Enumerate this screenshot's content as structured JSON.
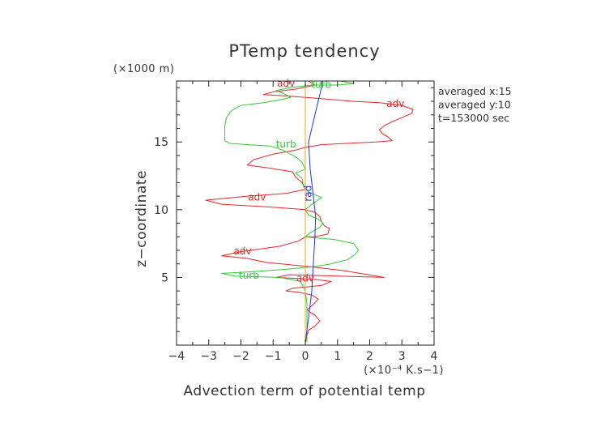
{
  "chart_data": {
    "type": "line",
    "title": "PTemp tendency",
    "xlabel": "Advection term of potential temp",
    "ylabel": "z−coordinate",
    "x_unit": "(×10⁻⁴ K.s−1)",
    "y_unit": "(×1000 m)",
    "xlim": [
      -4,
      4
    ],
    "ylim": [
      0,
      19.5
    ],
    "x_ticks": [
      -4,
      -3,
      -2,
      -1,
      0,
      1,
      2,
      3,
      4
    ],
    "x_tick_labels": [
      "−4",
      "−3",
      "−2",
      "−1",
      "0",
      "1",
      "2",
      "3",
      "4"
    ],
    "y_ticks": [
      5,
      10,
      15
    ],
    "y_tick_labels": [
      "5",
      "10",
      "15"
    ],
    "info_lines": [
      "averaged  x:15",
      "averaged  y:10",
      "t=153000 sec"
    ],
    "series": [
      {
        "name": "adv",
        "color": "#e8262a",
        "points": [
          [
            0.0,
            0.2
          ],
          [
            0.05,
            0.7
          ],
          [
            0.1,
            1.1
          ],
          [
            0.3,
            1.4
          ],
          [
            0.45,
            1.8
          ],
          [
            0.3,
            2.2
          ],
          [
            0.05,
            2.6
          ],
          [
            0.25,
            3.0
          ],
          [
            0.4,
            3.4
          ],
          [
            0.2,
            3.7
          ],
          [
            -0.2,
            3.9
          ],
          [
            -0.6,
            4.0
          ],
          [
            -0.4,
            4.2
          ],
          [
            0.5,
            4.4
          ],
          [
            0.8,
            4.7
          ],
          [
            0.3,
            4.85
          ],
          [
            -0.9,
            5.0
          ],
          [
            -0.5,
            5.2
          ],
          [
            2.45,
            5.0
          ],
          [
            1.2,
            5.5
          ],
          [
            0.1,
            5.8
          ],
          [
            -1.2,
            6.1
          ],
          [
            -1.8,
            6.4
          ],
          [
            -2.6,
            6.6
          ],
          [
            -2.0,
            6.9
          ],
          [
            -0.8,
            7.3
          ],
          [
            -0.2,
            7.7
          ],
          [
            0.0,
            8.0
          ],
          [
            0.3,
            8.0
          ],
          [
            0.7,
            8.2
          ],
          [
            0.75,
            8.6
          ],
          [
            0.6,
            8.8
          ],
          [
            0.5,
            9.1
          ],
          [
            0.45,
            9.5
          ],
          [
            0.3,
            9.8
          ],
          [
            0.0,
            10.0
          ],
          [
            -1.1,
            10.2
          ],
          [
            -2.6,
            10.4
          ],
          [
            -3.1,
            10.7
          ],
          [
            -1.8,
            11.0
          ],
          [
            -0.6,
            11.2
          ],
          [
            0.0,
            11.5
          ],
          [
            -0.1,
            12.0
          ],
          [
            -0.3,
            12.4
          ],
          [
            -0.4,
            12.8
          ],
          [
            -1.2,
            13.1
          ],
          [
            -1.8,
            13.3
          ],
          [
            -1.6,
            13.7
          ],
          [
            -1.0,
            14.1
          ],
          [
            -0.3,
            14.4
          ],
          [
            0.0,
            14.6
          ],
          [
            0.5,
            14.8
          ],
          [
            1.3,
            14.9
          ],
          [
            2.2,
            15.0
          ],
          [
            2.7,
            15.1
          ],
          [
            2.55,
            15.4
          ],
          [
            2.4,
            15.6
          ],
          [
            2.3,
            15.9
          ],
          [
            2.45,
            16.2
          ],
          [
            2.7,
            16.5
          ],
          [
            3.0,
            16.8
          ],
          [
            3.3,
            17.1
          ],
          [
            3.35,
            17.4
          ],
          [
            3.0,
            17.7
          ],
          [
            2.3,
            17.9
          ],
          [
            1.5,
            18.0
          ],
          [
            0.5,
            18.2
          ],
          [
            -0.6,
            18.4
          ],
          [
            -1.3,
            18.5
          ],
          [
            -1.0,
            18.7
          ],
          [
            -0.3,
            18.9
          ],
          [
            0.3,
            19.2
          ],
          [
            0.1,
            19.5
          ]
        ]
      },
      {
        "name": "turb",
        "color": "#2ecc2e",
        "points": [
          [
            0.05,
            0.2
          ],
          [
            0.05,
            1.0
          ],
          [
            0.05,
            2.0
          ],
          [
            0.05,
            3.0
          ],
          [
            0.0,
            4.0
          ],
          [
            -0.15,
            4.7
          ],
          [
            -0.8,
            5.0
          ],
          [
            -2.2,
            5.1
          ],
          [
            -2.6,
            5.3
          ],
          [
            -1.8,
            5.4
          ],
          [
            -0.6,
            5.6
          ],
          [
            0.3,
            5.8
          ],
          [
            0.8,
            6.0
          ],
          [
            1.3,
            6.3
          ],
          [
            1.55,
            6.7
          ],
          [
            1.65,
            7.0
          ],
          [
            1.5,
            7.5
          ],
          [
            0.9,
            7.8
          ],
          [
            0.4,
            7.9
          ],
          [
            0.0,
            8.0
          ],
          [
            0.15,
            8.3
          ],
          [
            0.45,
            8.7
          ],
          [
            0.55,
            9.0
          ],
          [
            0.4,
            9.3
          ],
          [
            0.1,
            9.6
          ],
          [
            0.0,
            10.0
          ],
          [
            0.15,
            10.3
          ],
          [
            0.5,
            10.9
          ],
          [
            0.1,
            11.3
          ],
          [
            -0.05,
            11.7
          ],
          [
            -0.1,
            12.3
          ],
          [
            -0.3,
            12.7
          ],
          [
            0.0,
            13.0
          ],
          [
            -0.1,
            13.5
          ],
          [
            -0.3,
            13.9
          ],
          [
            -0.7,
            14.4
          ],
          [
            -1.1,
            14.7
          ],
          [
            -1.8,
            14.8
          ],
          [
            -2.35,
            14.9
          ],
          [
            -2.5,
            15.1
          ],
          [
            -2.5,
            15.6
          ],
          [
            -2.5,
            16.2
          ],
          [
            -2.45,
            16.8
          ],
          [
            -2.3,
            17.3
          ],
          [
            -2.0,
            17.7
          ],
          [
            -1.3,
            17.9
          ],
          [
            -0.8,
            18.1
          ],
          [
            -0.45,
            18.3
          ],
          [
            -0.7,
            18.6
          ],
          [
            -0.9,
            18.8
          ],
          [
            -0.5,
            19.0
          ],
          [
            0.2,
            19.2
          ],
          [
            1.0,
            19.2
          ],
          [
            1.5,
            19.3
          ],
          [
            1.1,
            19.5
          ]
        ]
      },
      {
        "name": "rad",
        "color": "#2634d8",
        "points": [
          [
            0.0,
            0.2
          ],
          [
            0.1,
            2.0
          ],
          [
            0.2,
            4.0
          ],
          [
            0.25,
            6.0
          ],
          [
            0.3,
            8.0
          ],
          [
            0.32,
            9.5
          ],
          [
            0.25,
            11.0
          ],
          [
            0.15,
            13.0
          ],
          [
            0.1,
            15.0
          ],
          [
            0.3,
            17.0
          ],
          [
            0.45,
            18.5
          ],
          [
            0.55,
            19.5
          ]
        ]
      },
      {
        "name": "",
        "color": "#f0a020",
        "points": [
          [
            0.0,
            0.2
          ],
          [
            0.0,
            4.0
          ],
          [
            0.0,
            8.0
          ],
          [
            0.0,
            12.0
          ],
          [
            0.0,
            16.0
          ],
          [
            0.0,
            19.5
          ]
        ]
      }
    ],
    "annotations": [
      {
        "text": "adv",
        "series": "adv",
        "x": -0.6,
        "y": 19.3
      },
      {
        "text": "adv",
        "series": "adv",
        "x": 2.8,
        "y": 17.8
      },
      {
        "text": "adv",
        "series": "adv",
        "x": -1.5,
        "y": 10.9
      },
      {
        "text": "adv",
        "series": "adv",
        "x": -1.95,
        "y": 6.9
      },
      {
        "text": "adv",
        "series": "adv",
        "x": 0.0,
        "y": 4.9
      },
      {
        "text": "turb",
        "series": "turb",
        "x": 0.5,
        "y": 19.2
      },
      {
        "text": "turb",
        "series": "turb",
        "x": -0.6,
        "y": 14.8
      },
      {
        "text": "turb",
        "series": "turb",
        "x": -1.75,
        "y": 5.1
      },
      {
        "text": "rad",
        "series": "rad",
        "x": 0.1,
        "y": 11.2,
        "rotate": -90
      }
    ]
  }
}
